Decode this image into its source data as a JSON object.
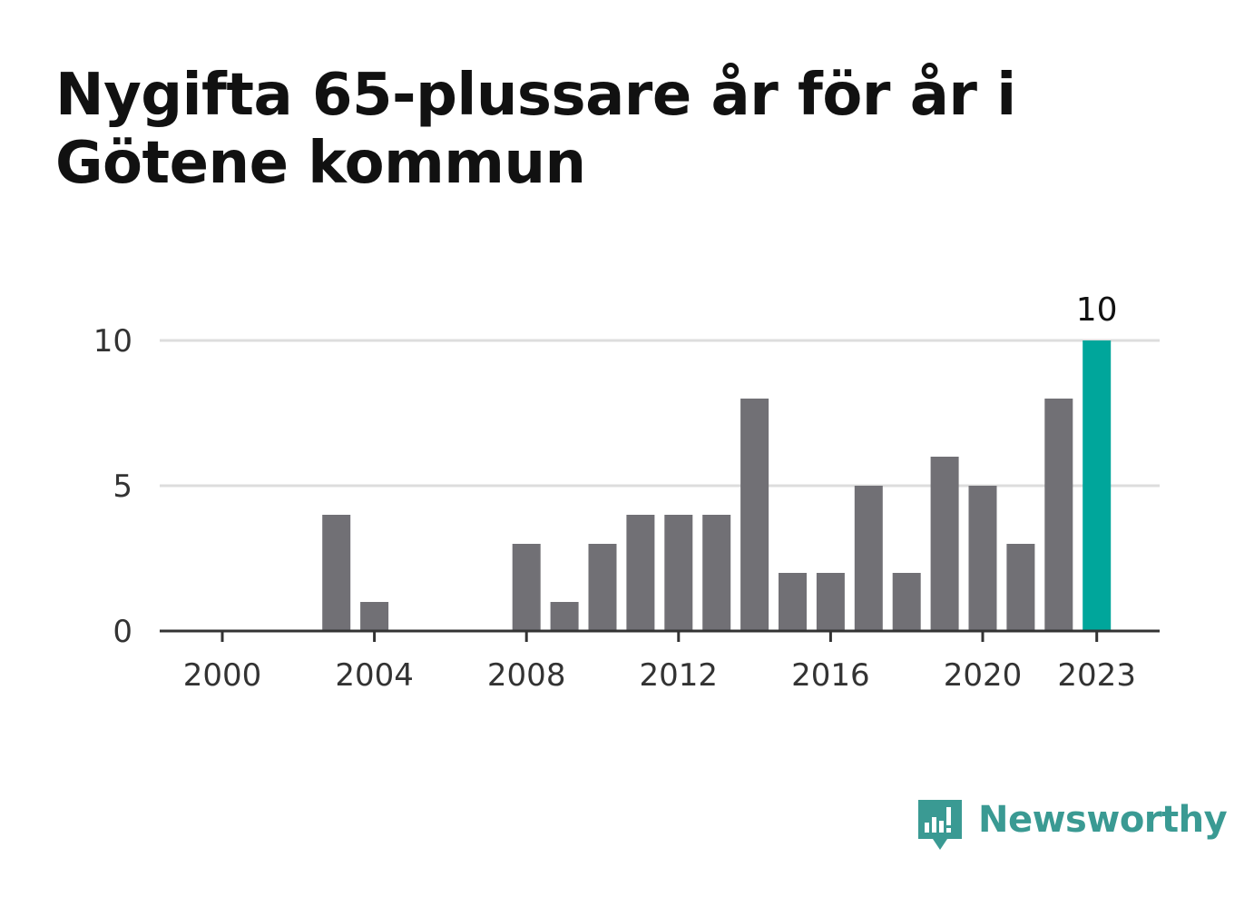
{
  "title": "Nygifta 65-plussare år för år i Götene kommun",
  "brand": {
    "name": "Newsworthy",
    "color": "#3a9a93",
    "icon": "bar-chart-speech-bubble-icon"
  },
  "colors": {
    "bar": "#717075",
    "highlight": "#00a69b",
    "grid": "#dddddd",
    "axis": "#333333",
    "tick_text": "#333333"
  },
  "chart_data": {
    "type": "bar",
    "categories": [
      "2000",
      "2001",
      "2002",
      "2003",
      "2004",
      "2005",
      "2006",
      "2007",
      "2008",
      "2009",
      "2010",
      "2011",
      "2012",
      "2013",
      "2014",
      "2015",
      "2016",
      "2017",
      "2018",
      "2019",
      "2020",
      "2021",
      "2022",
      "2023"
    ],
    "values": [
      0,
      0,
      0,
      4,
      1,
      0,
      0,
      0,
      3,
      1,
      3,
      4,
      4,
      4,
      8,
      2,
      2,
      5,
      2,
      6,
      5,
      3,
      8,
      10
    ],
    "highlight_category": "2023",
    "highlight_label": "10",
    "xticks": [
      "2000",
      "2004",
      "2008",
      "2012",
      "2016",
      "2020",
      "2023"
    ],
    "yticks": [
      0,
      5,
      10
    ],
    "ylim": [
      0,
      10
    ],
    "grid": true,
    "legend": "none"
  }
}
